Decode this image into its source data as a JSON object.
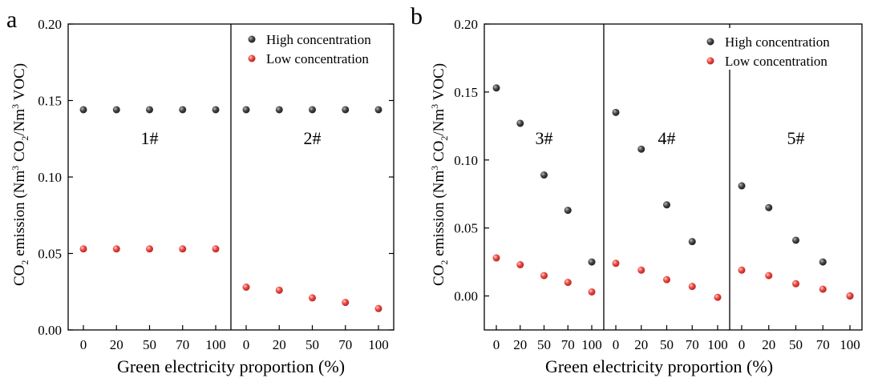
{
  "colors": {
    "high": "#3a3a3a",
    "low": "#e8393a",
    "axis": "#000000"
  },
  "chart_data": [
    {
      "type": "scatter",
      "panel_label": "a",
      "ylabel_parts": [
        "CO",
        "2",
        " emission (Nm",
        "3",
        " CO",
        "2",
        "/Nm",
        "3",
        " VOC)"
      ],
      "xlabel": "Green electricity proportion (%)",
      "ylim": [
        0,
        0.2
      ],
      "yticks": [
        "0.00",
        "0.05",
        "0.10",
        "0.15",
        "0.20"
      ],
      "ytick_values": [
        0,
        0.05,
        0.1,
        0.15,
        0.2
      ],
      "x_categories": [
        "0",
        "20",
        "50",
        "70",
        "100"
      ],
      "legend": {
        "position": "top-right",
        "entries": [
          "High concentration",
          "Low concentration"
        ]
      },
      "groups": [
        {
          "label": "1#",
          "x": [
            0,
            20,
            50,
            70,
            100
          ],
          "high": [
            0.144,
            0.144,
            0.144,
            0.144,
            0.144
          ],
          "low": [
            0.053,
            0.053,
            0.053,
            0.053,
            0.053
          ]
        },
        {
          "label": "2#",
          "x": [
            0,
            20,
            50,
            70,
            100
          ],
          "high": [
            0.144,
            0.144,
            0.144,
            0.144,
            0.144
          ],
          "low": [
            0.028,
            0.026,
            0.021,
            0.018,
            0.014
          ]
        }
      ]
    },
    {
      "type": "scatter",
      "panel_label": "b",
      "ylabel_parts": [
        "CO",
        "2",
        " emission (Nm",
        "3",
        " CO",
        "2",
        "/Nm",
        "3",
        " VOC)"
      ],
      "xlabel": "Green electricity proportion (%)",
      "ylim": [
        -0.025,
        0.2
      ],
      "yticks": [
        "0.00",
        "0.05",
        "0.10",
        "0.15",
        "0.20"
      ],
      "ytick_values": [
        0,
        0.05,
        0.1,
        0.15,
        0.2
      ],
      "x_categories": [
        "0",
        "20",
        "50",
        "70",
        "100"
      ],
      "legend": {
        "position": "top-right",
        "entries": [
          "High concentration",
          "Low concentration"
        ]
      },
      "groups": [
        {
          "label": "3#",
          "x": [
            0,
            20,
            50,
            70,
            100
          ],
          "high": [
            0.153,
            0.127,
            0.089,
            0.063,
            0.025
          ],
          "low": [
            0.028,
            0.023,
            0.015,
            0.01,
            0.003
          ]
        },
        {
          "label": "4#",
          "x": [
            0,
            20,
            50,
            70,
            100
          ],
          "high": [
            0.135,
            0.108,
            0.067,
            0.04,
            null
          ],
          "low": [
            0.024,
            0.019,
            0.012,
            0.007,
            -0.001
          ]
        },
        {
          "label": "5#",
          "x": [
            0,
            20,
            50,
            70,
            100
          ],
          "high": [
            0.081,
            0.065,
            0.041,
            0.025,
            0.0
          ],
          "low": [
            0.019,
            0.015,
            0.009,
            0.005,
            0.0
          ]
        }
      ]
    }
  ]
}
